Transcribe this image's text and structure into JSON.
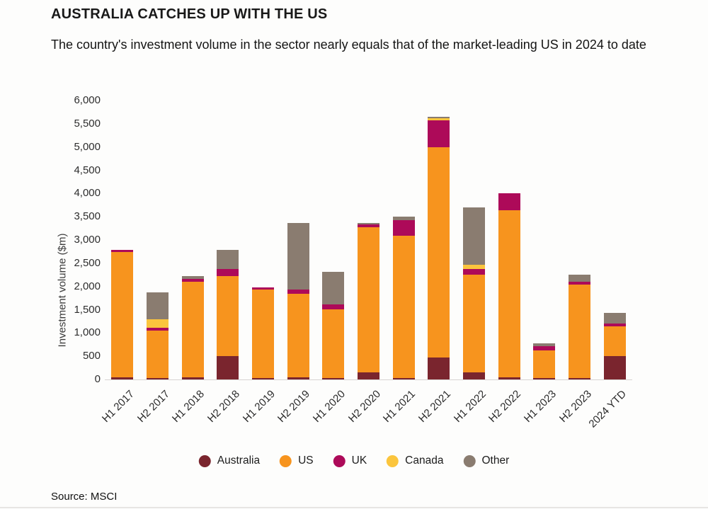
{
  "page": {
    "title": "AUSTRALIA CATCHES UP WITH THE US",
    "subtitle": "The country's investment volume in the sector nearly equals that of the market-leading US in 2024 to date",
    "source": "Source: MSCI"
  },
  "colors": {
    "australia": "#7a252e",
    "us": "#f7941e",
    "uk": "#ad0a59",
    "canada": "#fbc53d",
    "other": "#8a7c70",
    "axis_line": "#d6d4d2"
  },
  "chart_data": {
    "type": "bar",
    "stacked": true,
    "title": "AUSTRALIA CATCHES UP WITH THE US",
    "subtitle": "The country's investment volume in the sector nearly equals that of the market-leading US in 2024 to date",
    "xlabel": "",
    "ylabel": "Investment volume ($m)",
    "ylim": [
      0,
      6000
    ],
    "ytick_step": 500,
    "yticks": [
      0,
      500,
      1000,
      1500,
      2000,
      2500,
      3000,
      3500,
      4000,
      4500,
      5000,
      5500,
      6000
    ],
    "grid": false,
    "legend_position": "bottom",
    "categories": [
      "H1 2017",
      "H2 2017",
      "H1 2018",
      "H2 2018",
      "H1 2019",
      "H2 2019",
      "H1 2020",
      "H2 2020",
      "H1 2021",
      "H2 2021",
      "H1 2022",
      "H2 2022",
      "H1 2023",
      "H2 2023",
      "2024 YTD"
    ],
    "series": [
      {
        "name": "Australia",
        "color": "#7a252e",
        "values": [
          50,
          30,
          50,
          510,
          30,
          40,
          30,
          150,
          30,
          470,
          150,
          40,
          25,
          30,
          500
        ]
      },
      {
        "name": "US",
        "color": "#f7941e",
        "values": [
          2690,
          1020,
          2050,
          1720,
          1900,
          1810,
          1480,
          3120,
          3060,
          4530,
          2110,
          3600,
          600,
          2010,
          650
        ]
      },
      {
        "name": "UK",
        "color": "#ad0a59",
        "values": [
          40,
          60,
          60,
          150,
          50,
          80,
          105,
          60,
          330,
          570,
          120,
          360,
          90,
          60,
          50
        ]
      },
      {
        "name": "Canada",
        "color": "#fbc53d",
        "values": [
          0,
          190,
          0,
          0,
          0,
          0,
          0,
          0,
          0,
          50,
          80,
          0,
          0,
          0,
          0
        ]
      },
      {
        "name": "Other",
        "color": "#8a7c70",
        "values": [
          10,
          580,
          70,
          410,
          0,
          1430,
          705,
          30,
          80,
          30,
          1240,
          0,
          55,
          150,
          230
        ]
      }
    ],
    "totals": [
      2790,
      1880,
      2230,
      2790,
      1980,
      3360,
      2320,
      3360,
      3500,
      5650,
      3700,
      4000,
      770,
      2250,
      1430
    ]
  }
}
